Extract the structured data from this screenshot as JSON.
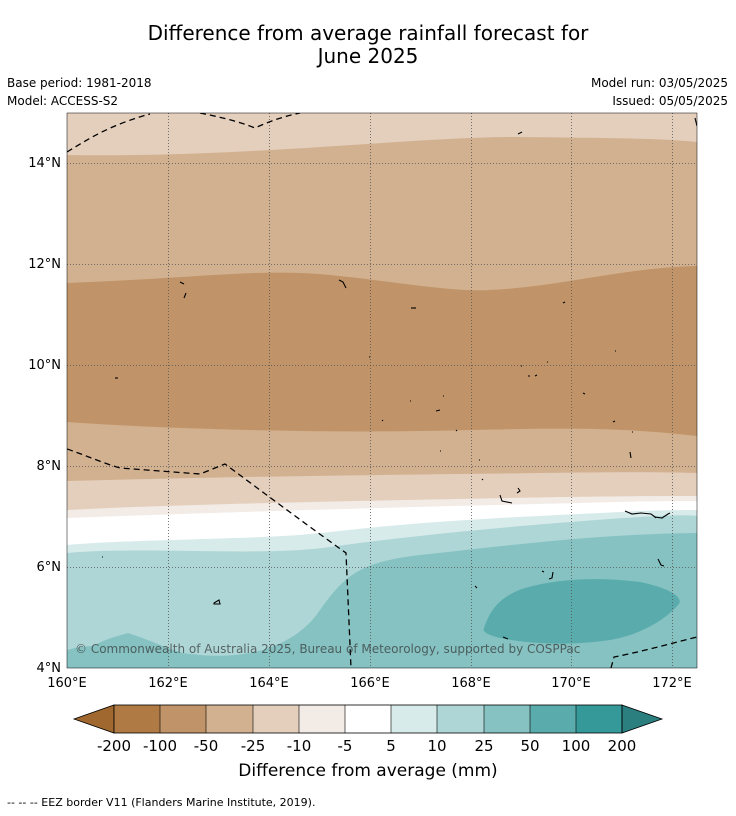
{
  "title_line1": "Difference from average rainfall forecast for",
  "title_line2": "June 2025",
  "meta": {
    "base_period": "Base period: 1981-2018",
    "model": "Model: ACCESS-S2",
    "model_run": "Model run: 03/05/2025",
    "issued": "Issued: 05/05/2025"
  },
  "axes": {
    "lat_ticks": [
      "4°N",
      "6°N",
      "8°N",
      "10°N",
      "12°N",
      "14°N"
    ],
    "lon_ticks": [
      "160°E",
      "162°E",
      "164°E",
      "166°E",
      "168°E",
      "170°E",
      "172°E"
    ]
  },
  "copyright": "© Commonwealth of Australia 2025, Bureau of Meteorology, supported by COSPPac",
  "colorbar": {
    "title": "Difference from average (mm)",
    "labels": [
      "-200",
      "-100",
      "-50",
      "-25",
      "-10",
      "-5",
      "5",
      "10",
      "25",
      "50",
      "100",
      "200"
    ],
    "colors": [
      "#a0682e",
      "#b07a44",
      "#c09468",
      "#d2b190",
      "#e4cfbd",
      "#f2ebe6",
      "#ffffff",
      "#d7ebea",
      "#aed6d6",
      "#86c2c2",
      "#5aacac",
      "#359999",
      "#2b7f7f"
    ]
  },
  "footer": "--  --  -- EEZ border V11 (Flanders Marine Institute, 2019)."
}
